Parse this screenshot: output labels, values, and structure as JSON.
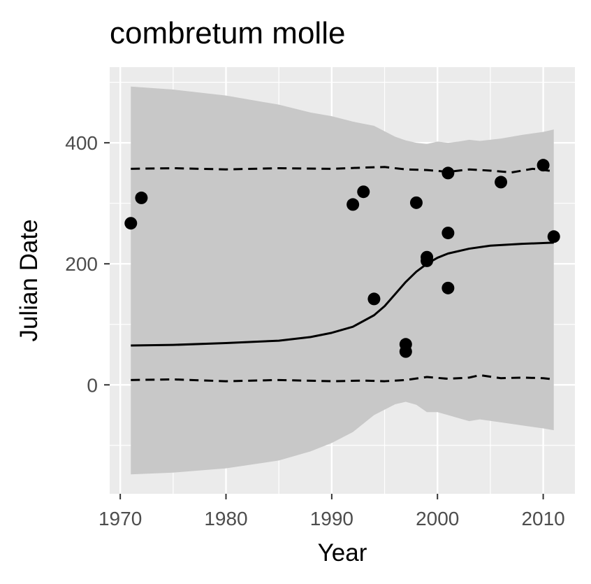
{
  "chart_data": {
    "type": "scatter",
    "title": "combretum molle",
    "xlabel": "Year",
    "ylabel": "Julian Date",
    "xlim": [
      1969,
      2013
    ],
    "ylim": [
      -180,
      525
    ],
    "x_ticks": [
      1970,
      1980,
      1990,
      2000,
      2010
    ],
    "y_ticks": [
      0,
      200,
      400
    ],
    "grid": true,
    "legend": "none",
    "colors": {
      "panel": "#ebebeb",
      "grid": "#ffffff",
      "ribbon": "#c8c8c8",
      "points": "#000000",
      "fit": "#000000"
    },
    "series": [
      {
        "type": "points",
        "x": [
          1971,
          1972,
          1992,
          1993,
          1994,
          1997,
          1997,
          1998,
          1999,
          1999,
          2001,
          2001,
          2001,
          2006,
          2010,
          2011
        ],
        "y": [
          267,
          309,
          298,
          319,
          142,
          55,
          67,
          301,
          211,
          205,
          350,
          251,
          160,
          335,
          363,
          245
        ]
      },
      {
        "type": "line",
        "style": "solid",
        "x": [
          1971,
          1975,
          1980,
          1985,
          1988,
          1990,
          1992,
          1994,
          1995,
          1996,
          1997,
          1998,
          1999,
          2000,
          2001,
          2003,
          2005,
          2008,
          2011
        ],
        "y": [
          65,
          66,
          69,
          73,
          79,
          86,
          96,
          115,
          130,
          150,
          170,
          187,
          200,
          210,
          217,
          225,
          230,
          233,
          235
        ]
      },
      {
        "type": "line",
        "style": "dashed",
        "x": [
          1971,
          1975,
          1980,
          1985,
          1990,
          1993,
          1995,
          1997,
          1999,
          2001,
          2003,
          2005,
          2007,
          2009,
          2011
        ],
        "y": [
          357,
          358,
          356,
          358,
          357,
          359,
          360,
          356,
          355,
          352,
          356,
          354,
          351,
          357,
          353
        ]
      },
      {
        "type": "line",
        "style": "dashed",
        "x": [
          1971,
          1975,
          1980,
          1985,
          1990,
          1993,
          1995,
          1997,
          1999,
          2001,
          2003,
          2004,
          2006,
          2008,
          2010,
          2011
        ],
        "y": [
          8,
          9,
          6,
          8,
          6,
          7,
          6,
          8,
          13,
          10,
          12,
          16,
          11,
          12,
          11,
          9
        ]
      },
      {
        "type": "ribbon",
        "x": [
          1971,
          1975,
          1980,
          1985,
          1988,
          1990,
          1992,
          1994,
          1996,
          1997,
          1998,
          1999,
          2000,
          2001,
          2002,
          2003,
          2004,
          2006,
          2008,
          2010,
          2011
        ],
        "ymin": [
          -148,
          -145,
          -138,
          -125,
          -110,
          -96,
          -78,
          -50,
          -32,
          -28,
          -33,
          -45,
          -45,
          -50,
          -55,
          -60,
          -57,
          -62,
          -67,
          -72,
          -75
        ],
        "ymax": [
          493,
          488,
          478,
          463,
          450,
          444,
          435,
          428,
          410,
          404,
          400,
          398,
          402,
          400,
          402,
          405,
          403,
          407,
          413,
          418,
          422
        ]
      }
    ]
  }
}
